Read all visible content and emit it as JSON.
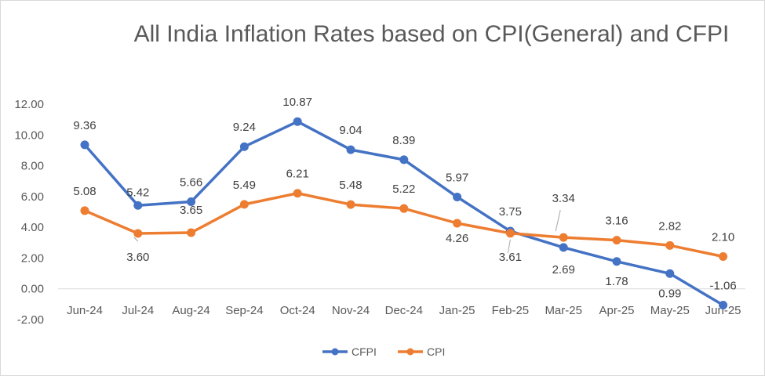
{
  "chart_data": {
    "type": "line",
    "title": "All India Inflation Rates based on CPI(General) and CFPI",
    "categories": [
      "Jun-24",
      "Jul-24",
      "Aug-24",
      "Sep-24",
      "Oct-24",
      "Nov-24",
      "Dec-24",
      "Jan-25",
      "Feb-25",
      "Mar-25",
      "Apr-25",
      "May-25",
      "Jun-25"
    ],
    "series": [
      {
        "name": "CFPI",
        "color": "#4472c4",
        "values": [
          9.36,
          5.42,
          5.66,
          9.24,
          10.87,
          9.04,
          8.39,
          5.97,
          3.75,
          2.69,
          1.78,
          0.99,
          -1.06
        ],
        "labels": [
          "9.36",
          "5.42",
          "5.66",
          "9.24",
          "10.87",
          "9.04",
          "8.39",
          "5.97",
          "3.75",
          "2.69",
          "1.78",
          "0.99",
          "-1.06"
        ]
      },
      {
        "name": "CPI",
        "color": "#ed7d31",
        "values": [
          5.08,
          3.6,
          3.65,
          5.49,
          6.21,
          5.48,
          5.22,
          4.26,
          3.61,
          3.34,
          3.16,
          2.82,
          2.1
        ],
        "labels": [
          "5.08",
          "3.60",
          "3.65",
          "5.49",
          "6.21",
          "5.48",
          "5.22",
          "4.26",
          "3.61",
          "3.34",
          "3.16",
          "2.82",
          "2.10"
        ]
      }
    ],
    "ylim": [
      -2,
      12
    ],
    "yticks": [
      "-2.00",
      "0.00",
      "2.00",
      "4.00",
      "6.00",
      "8.00",
      "10.00",
      "12.00"
    ],
    "xlabel": "",
    "ylabel": "",
    "grid": false,
    "legend": "bottom"
  }
}
